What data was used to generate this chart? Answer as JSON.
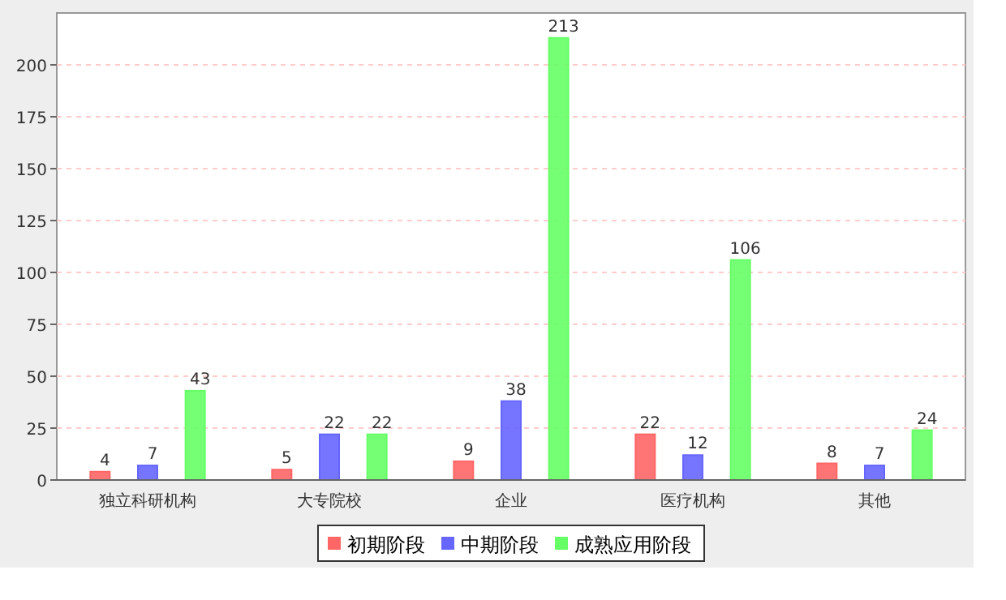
{
  "chart_data": {
    "type": "bar",
    "categories": [
      "独立科研机构",
      "大专院校",
      "企业",
      "医疗机构",
      "其他"
    ],
    "series": [
      {
        "name": "初期阶段",
        "color": "#ff6666",
        "values": [
          4,
          5,
          9,
          22,
          8
        ]
      },
      {
        "name": "中期阶段",
        "color": "#6666ff",
        "values": [
          7,
          22,
          38,
          12,
          7
        ]
      },
      {
        "name": "成熟应用阶段",
        "color": "#66ff66",
        "values": [
          43,
          22,
          213,
          106,
          24
        ]
      }
    ],
    "ylim": [
      0,
      225
    ],
    "yticks": [
      0,
      25,
      50,
      75,
      100,
      125,
      150,
      175,
      200
    ],
    "grid": "y",
    "data_labels": true,
    "legend": "bottom"
  }
}
